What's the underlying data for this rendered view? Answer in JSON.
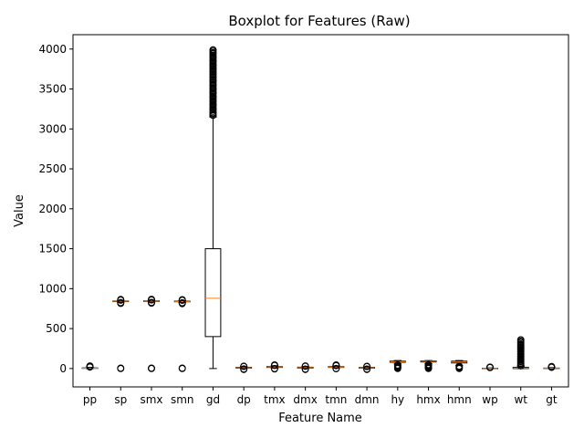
{
  "chart_data": {
    "type": "boxplot",
    "title": "Boxplot for Features (Raw)",
    "xlabel": "Feature Name",
    "ylabel": "Value",
    "ylim": [
      -230,
      4180
    ],
    "yticks": [
      0,
      500,
      1000,
      1500,
      2000,
      2500,
      3000,
      3500,
      4000
    ],
    "median_color": "#ff7f0e",
    "box_color": "#000000",
    "grid": false,
    "categories": [
      "pp",
      "sp",
      "smx",
      "smn",
      "gd",
      "dp",
      "tmx",
      "dmx",
      "tmn",
      "dmn",
      "hy",
      "hmx",
      "hmn",
      "wp",
      "wt",
      "gt"
    ],
    "boxes": [
      {
        "name": "pp",
        "q1": 2,
        "median": 4,
        "q3": 8,
        "whisker_low": 0,
        "whisker_high": 15,
        "outliers": [
          18,
          22,
          27,
          32
        ]
      },
      {
        "name": "sp",
        "q1": 838,
        "median": 842,
        "q3": 846,
        "whisker_low": 832,
        "whisker_high": 852,
        "outliers": [
          0,
          2,
          5,
          815,
          820,
          826,
          856,
          860,
          865
        ]
      },
      {
        "name": "smx",
        "q1": 840,
        "median": 844,
        "q3": 848,
        "whisker_low": 834,
        "whisker_high": 854,
        "outliers": [
          0,
          2,
          5,
          818,
          823,
          828,
          858,
          862,
          866
        ]
      },
      {
        "name": "smn",
        "q1": 836,
        "median": 840,
        "q3": 844,
        "whisker_low": 830,
        "whisker_high": 850,
        "outliers": [
          0,
          2,
          5,
          812,
          818,
          824,
          854,
          858,
          862
        ]
      },
      {
        "name": "gd",
        "q1": 400,
        "median": 880,
        "q3": 1500,
        "whisker_low": 0,
        "whisker_high": 3150,
        "outliers_range": [
          3170,
          3990
        ],
        "outliers": [
          3170,
          3200,
          3250,
          3300,
          3350,
          3400,
          3450,
          3500,
          3550,
          3600,
          3650,
          3700,
          3750,
          3800,
          3850,
          3900,
          3950,
          3990
        ]
      },
      {
        "name": "dp",
        "q1": 5,
        "median": 10,
        "q3": 15,
        "whisker_low": 0,
        "whisker_high": 22,
        "outliers": [
          -12,
          -5,
          26,
          30
        ]
      },
      {
        "name": "tmx",
        "q1": 14,
        "median": 20,
        "q3": 25,
        "whisker_low": 5,
        "whisker_high": 35,
        "outliers": [
          -5,
          0,
          38,
          42,
          45
        ]
      },
      {
        "name": "dmx",
        "q1": 6,
        "median": 12,
        "q3": 17,
        "whisker_low": 0,
        "whisker_high": 25,
        "outliers": [
          -12,
          -6,
          28,
          32
        ]
      },
      {
        "name": "tmn",
        "q1": 14,
        "median": 19,
        "q3": 24,
        "whisker_low": 5,
        "whisker_high": 33,
        "outliers": [
          -3,
          1,
          36,
          40,
          45
        ]
      },
      {
        "name": "dmn",
        "q1": 4,
        "median": 9,
        "q3": 14,
        "whisker_low": 0,
        "whisker_high": 20,
        "outliers": [
          -12,
          -6,
          24,
          28
        ]
      },
      {
        "name": "hy",
        "q1": 78,
        "median": 86,
        "q3": 93,
        "whisker_low": 58,
        "whisker_high": 100,
        "outliers": [
          0,
          5,
          10,
          15,
          20,
          25,
          30,
          35,
          40,
          45
        ]
      },
      {
        "name": "hmx",
        "q1": 82,
        "median": 90,
        "q3": 96,
        "whisker_low": 62,
        "whisker_high": 100,
        "outliers": [
          0,
          5,
          10,
          15,
          20,
          25,
          30,
          35,
          40,
          45,
          50
        ]
      },
      {
        "name": "hmn",
        "q1": 70,
        "median": 82,
        "q3": 92,
        "whisker_low": 40,
        "whisker_high": 100,
        "outliers": [
          0,
          5,
          10,
          15,
          20,
          25,
          30
        ]
      },
      {
        "name": "wp",
        "q1": 0,
        "median": 2,
        "q3": 4,
        "whisker_low": 0,
        "whisker_high": 8,
        "outliers": [
          12,
          15,
          18
        ]
      },
      {
        "name": "wt",
        "q1": 0,
        "median": 5,
        "q3": 15,
        "whisker_low": 0,
        "whisker_high": 30,
        "outliers_range": [
          35,
          360
        ],
        "outliers": [
          35,
          60,
          90,
          120,
          150,
          180,
          210,
          240,
          270,
          300,
          330,
          360
        ]
      },
      {
        "name": "gt",
        "q1": 1,
        "median": 3,
        "q3": 6,
        "whisker_low": 0,
        "whisker_high": 12,
        "outliers": [
          15,
          20,
          25
        ]
      }
    ]
  }
}
